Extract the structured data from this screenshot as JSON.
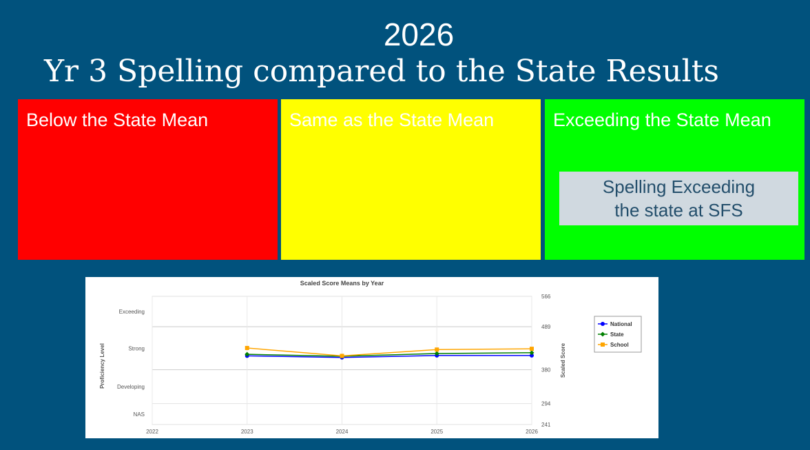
{
  "header": {
    "year": "2026",
    "title": "Yr 3 Spelling compared to the State Results"
  },
  "panels": [
    {
      "label": "Below the State Mean",
      "color": "#ff0000",
      "text_color": "#ffffff"
    },
    {
      "label": "Same as the State Mean",
      "color": "#ffff00",
      "text_color": "#ffffff"
    },
    {
      "label": "Exceeding the State Mean",
      "color": "#00ff00",
      "text_color": "#ffffff"
    }
  ],
  "note": {
    "line1": "Spelling Exceeding",
    "line2": "the state at SFS"
  },
  "chart_data": {
    "type": "line",
    "title": "Scaled Score Means by Year",
    "xlabel": "",
    "ylabel_left": "Proficiency Level",
    "ylabel_right": "Scaled Score",
    "x": [
      2022,
      2023,
      2024,
      2025,
      2026
    ],
    "xlim": [
      2022,
      2026
    ],
    "right_axis_ticks": [
      566,
      489,
      380,
      294,
      241
    ],
    "ylim": [
      241,
      566
    ],
    "proficiency_bands": [
      {
        "label": "Exceeding",
        "from": 489,
        "to": 566
      },
      {
        "label": "Strong",
        "from": 380,
        "to": 489
      },
      {
        "label": "Developing",
        "from": 294,
        "to": 380
      },
      {
        "label": "NAS",
        "from": 241,
        "to": 294
      }
    ],
    "series": [
      {
        "name": "National",
        "color": "#0000ff",
        "marker": "circle",
        "x": [
          2023,
          2024,
          2025,
          2026
        ],
        "values": [
          415,
          411,
          416,
          416
        ]
      },
      {
        "name": "State",
        "color": "#008000",
        "marker": "diamond",
        "x": [
          2023,
          2024,
          2025,
          2026
        ],
        "values": [
          419,
          414,
          421,
          423
        ]
      },
      {
        "name": "School",
        "color": "#ffa500",
        "marker": "square",
        "x": [
          2023,
          2024,
          2025,
          2026
        ],
        "values": [
          435,
          415,
          431,
          433
        ]
      }
    ],
    "legend": "right",
    "grid": true
  }
}
